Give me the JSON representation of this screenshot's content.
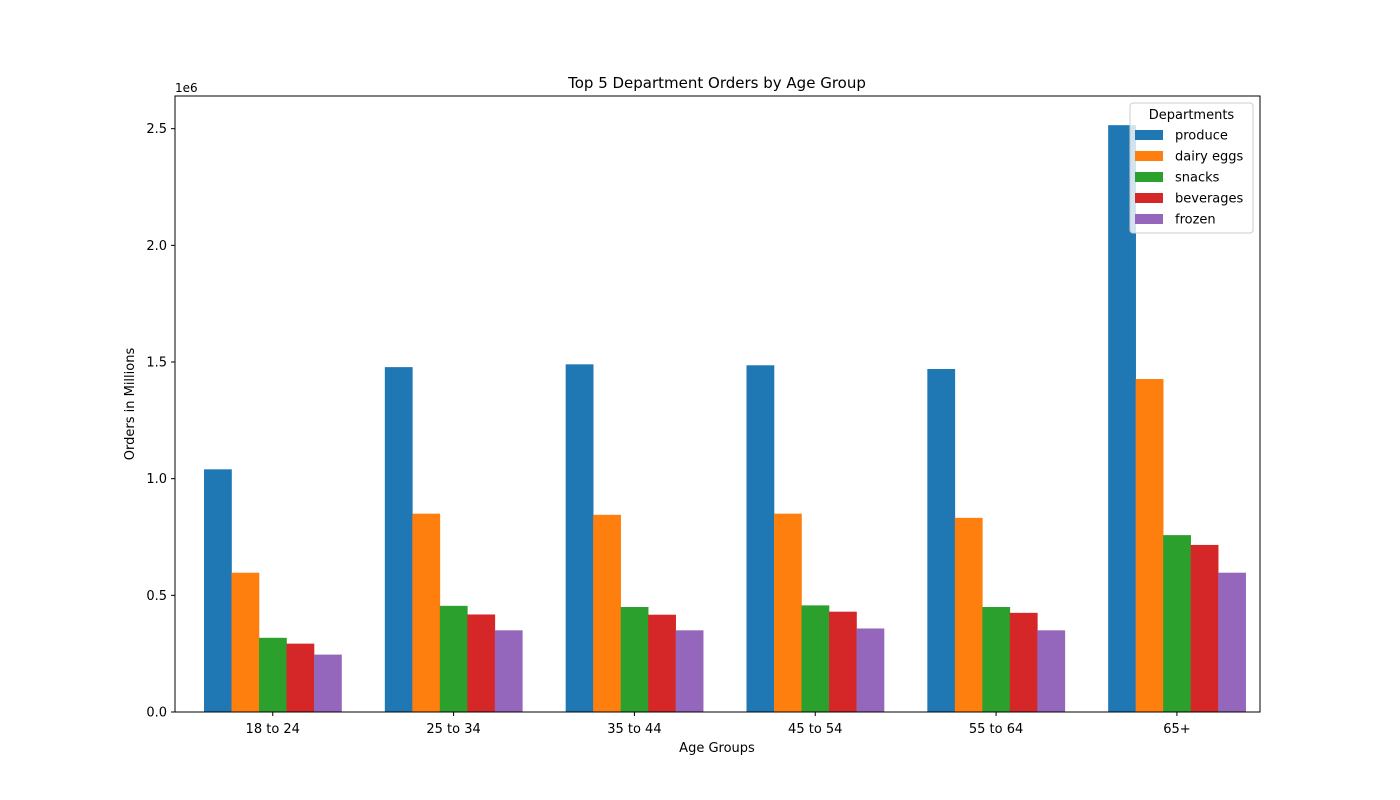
{
  "chart_data": {
    "type": "bar",
    "title": "Top 5 Department Orders by Age Group",
    "xlabel": "Age Groups",
    "ylabel": "Orders in Millions",
    "y_offset_label": "1e6",
    "y_scale_divisor": 1000000,
    "ylim": [
      0,
      2640000
    ],
    "yticks": [
      0,
      500000,
      1000000,
      1500000,
      2000000,
      2500000
    ],
    "ytick_labels": [
      "0.0",
      "0.5",
      "1.0",
      "1.5",
      "2.0",
      "2.5"
    ],
    "grid": false,
    "legend": {
      "title": "Departments",
      "placement": "upper right"
    },
    "categories": [
      "18 to 24",
      "25 to 34",
      "35 to 44",
      "45 to 54",
      "55 to 64",
      "65+"
    ],
    "series": [
      {
        "name": "produce",
        "color": "#1f77b4",
        "values": [
          1040000,
          1478000,
          1490000,
          1486000,
          1470000,
          2515000
        ]
      },
      {
        "name": "dairy eggs",
        "color": "#ff7f0e",
        "values": [
          597000,
          850000,
          845000,
          850000,
          832000,
          1427000
        ]
      },
      {
        "name": "snacks",
        "color": "#2ca02c",
        "values": [
          318000,
          455000,
          450000,
          457000,
          450000,
          758000
        ]
      },
      {
        "name": "beverages",
        "color": "#d62728",
        "values": [
          293000,
          418000,
          417000,
          430000,
          425000,
          716000
        ]
      },
      {
        "name": "frozen",
        "color": "#9467bd",
        "values": [
          246000,
          350000,
          350000,
          358000,
          350000,
          597000
        ]
      }
    ]
  }
}
